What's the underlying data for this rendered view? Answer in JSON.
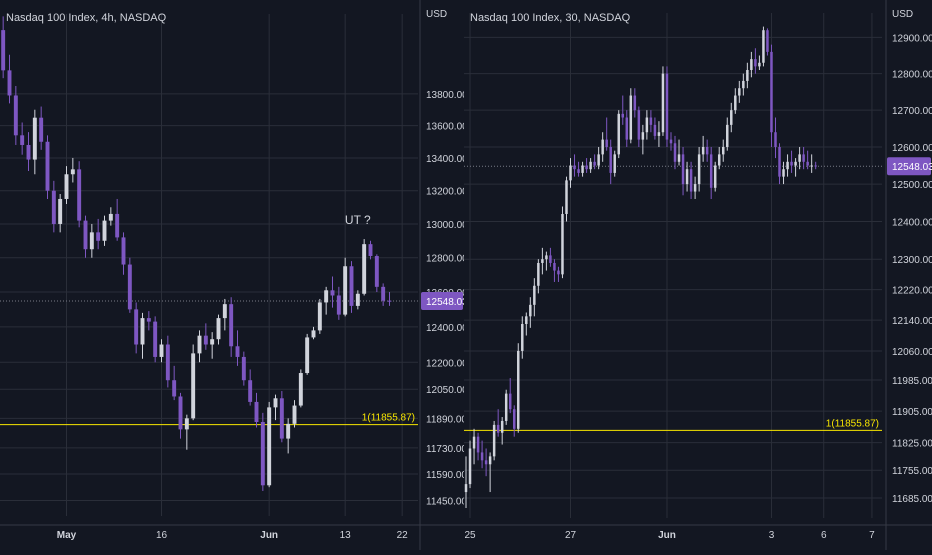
{
  "theme": {
    "background": "#131722",
    "grid": "#2a2e39",
    "text": "#d1d4dc",
    "bull": "#d1d4dc",
    "bear": "#7e57c2",
    "level_line": "#f7e600",
    "price_badge": "#7e57c2"
  },
  "chart_data": [
    {
      "type": "candlestick",
      "title": "Nasdaq 100 Index, 4h, NASDAQ",
      "currency_label": "USD",
      "y_scale": "log",
      "ylim": [
        11400,
        14250
      ],
      "y_ticks": [
        11450,
        11590,
        11730,
        11890,
        12050,
        12200,
        12400,
        12600,
        12800,
        13000,
        13200,
        13400,
        13600,
        13800
      ],
      "y_tick_labels": [
        "11450.00",
        "11590.00",
        "11730.00",
        "11890.00",
        "12050.00",
        "12200.00",
        "12400.00",
        "12600.00",
        "12800.00",
        "13000.00",
        "13200.00",
        "13400.00",
        "13600.00",
        "13800.00"
      ],
      "x_ticks": [
        {
          "index": 10,
          "label": "May",
          "bold": true
        },
        {
          "index": 25,
          "label": "16",
          "bold": false
        },
        {
          "index": 42,
          "label": "Jun",
          "bold": true
        },
        {
          "index": 54,
          "label": "13",
          "bold": false
        },
        {
          "index": 63,
          "label": "22",
          "bold": false
        }
      ],
      "x_count": 66,
      "candles": [
        [
          14210,
          14300,
          13900,
          13950
        ],
        [
          13950,
          14050,
          13740,
          13790
        ],
        [
          13790,
          13850,
          13480,
          13540
        ],
        [
          13540,
          13620,
          13420,
          13480
        ],
        [
          13480,
          13560,
          13320,
          13390
        ],
        [
          13390,
          13700,
          13300,
          13650
        ],
        [
          13650,
          13720,
          13450,
          13500
        ],
        [
          13500,
          13540,
          13150,
          13200
        ],
        [
          13200,
          13260,
          12950,
          13000
        ],
        [
          13000,
          13180,
          12950,
          13150
        ],
        [
          13150,
          13350,
          13120,
          13300
        ],
        [
          13300,
          13400,
          13250,
          13330
        ],
        [
          13330,
          13380,
          12980,
          13020
        ],
        [
          13020,
          13050,
          12800,
          12850
        ],
        [
          12850,
          13000,
          12800,
          12950
        ],
        [
          12950,
          13030,
          12850,
          12900
        ],
        [
          12900,
          13050,
          12870,
          13020
        ],
        [
          13020,
          13100,
          12990,
          13060
        ],
        [
          13060,
          13150,
          12900,
          12920
        ],
        [
          12920,
          12950,
          12700,
          12760
        ],
        [
          12760,
          12800,
          12480,
          12500
        ],
        [
          12500,
          12540,
          12250,
          12300
        ],
        [
          12300,
          12480,
          12220,
          12450
        ],
        [
          12450,
          12490,
          12380,
          12430
        ],
        [
          12430,
          12460,
          12200,
          12230
        ],
        [
          12230,
          12330,
          12200,
          12300
        ],
        [
          12300,
          12350,
          12060,
          12100
        ],
        [
          12100,
          12180,
          11990,
          12010
        ],
        [
          12010,
          12030,
          11780,
          11830
        ],
        [
          11830,
          11910,
          11720,
          11890
        ],
        [
          11890,
          12300,
          11880,
          12250
        ],
        [
          12250,
          12380,
          12200,
          12350
        ],
        [
          12350,
          12420,
          12270,
          12300
        ],
        [
          12300,
          12370,
          12220,
          12330
        ],
        [
          12330,
          12470,
          12300,
          12450
        ],
        [
          12450,
          12560,
          12380,
          12530
        ],
        [
          12530,
          12570,
          12230,
          12290
        ],
        [
          12290,
          12380,
          12180,
          12230
        ],
        [
          12230,
          12260,
          12070,
          12100
        ],
        [
          12100,
          12160,
          11960,
          11980
        ],
        [
          11980,
          12030,
          11840,
          11870
        ],
        [
          11870,
          11920,
          11500,
          11530
        ],
        [
          11530,
          11980,
          11520,
          11950
        ],
        [
          11950,
          12020,
          11880,
          12000
        ],
        [
          12000,
          12040,
          11760,
          11780
        ],
        [
          11780,
          11890,
          11700,
          11860
        ],
        [
          11860,
          11990,
          11840,
          11960
        ],
        [
          11960,
          12160,
          11950,
          12140
        ],
        [
          12140,
          12360,
          12130,
          12340
        ],
        [
          12340,
          12400,
          12330,
          12380
        ],
        [
          12380,
          12560,
          12360,
          12540
        ],
        [
          12540,
          12630,
          12470,
          12610
        ],
        [
          12610,
          12690,
          12510,
          12580
        ],
        [
          12580,
          12630,
          12440,
          12470
        ],
        [
          12470,
          12800,
          12460,
          12750
        ],
        [
          12750,
          12780,
          12480,
          12520
        ],
        [
          12520,
          12610,
          12500,
          12590
        ],
        [
          12590,
          12910,
          12580,
          12880
        ],
        [
          12880,
          12900,
          12790,
          12810
        ],
        [
          12810,
          12820,
          12600,
          12630
        ],
        [
          12630,
          12650,
          12520,
          12550
        ],
        [
          12550,
          12600,
          12520,
          12548
        ]
      ],
      "level": {
        "value": 11855.87,
        "label": "1(11855.87)"
      },
      "last_price": {
        "value": 12548.03,
        "label": "12548.03"
      },
      "annotation": {
        "text": "UT ?",
        "index": 56,
        "value": 13000
      }
    },
    {
      "type": "candlestick",
      "title": "Nasdaq 100 Index, 30, NASDAQ",
      "currency_label": "USD",
      "y_scale": "log",
      "ylim": [
        11650,
        12940
      ],
      "y_ticks": [
        11685,
        11755,
        11825,
        11905,
        11985,
        12060,
        12140,
        12220,
        12300,
        12400,
        12500,
        12600,
        12700,
        12800,
        12900
      ],
      "y_tick_labels": [
        "11685.00",
        "11755.00",
        "11825.00",
        "11905.00",
        "11985.00",
        "12060.00",
        "12140.00",
        "12220.00",
        "12300.00",
        "12400.00",
        "12500.00",
        "12600.00",
        "12700.00",
        "12800.00",
        "12900.00"
      ],
      "x_ticks": [
        {
          "index": 1,
          "label": "25",
          "bold": false
        },
        {
          "index": 26,
          "label": "27",
          "bold": false
        },
        {
          "index": 50,
          "label": "Jun",
          "bold": true
        },
        {
          "index": 76,
          "label": "3",
          "bold": false
        },
        {
          "index": 89,
          "label": "6",
          "bold": false
        },
        {
          "index": 101,
          "label": "7",
          "bold": false
        }
      ],
      "x_count": 104,
      "candles": [
        [
          11700,
          11790,
          11660,
          11720
        ],
        [
          11720,
          11830,
          11710,
          11810
        ],
        [
          11810,
          11860,
          11770,
          11840
        ],
        [
          11840,
          11850,
          11780,
          11800
        ],
        [
          11800,
          11830,
          11760,
          11780
        ],
        [
          11780,
          11810,
          11740,
          11770
        ],
        [
          11770,
          11800,
          11700,
          11790
        ],
        [
          11790,
          11880,
          11780,
          11870
        ],
        [
          11870,
          11910,
          11840,
          11850
        ],
        [
          11850,
          11890,
          11820,
          11880
        ],
        [
          11880,
          11960,
          11870,
          11950
        ],
        [
          11950,
          11990,
          11900,
          11910
        ],
        [
          11910,
          11920,
          11840,
          11860
        ],
        [
          11860,
          12080,
          11850,
          12060
        ],
        [
          12060,
          12150,
          12040,
          12130
        ],
        [
          12130,
          12160,
          12100,
          12150
        ],
        [
          12150,
          12200,
          12120,
          12180
        ],
        [
          12180,
          12250,
          12150,
          12230
        ],
        [
          12230,
          12300,
          12210,
          12290
        ],
        [
          12290,
          12330,
          12260,
          12300
        ],
        [
          12300,
          12320,
          12270,
          12310
        ],
        [
          12310,
          12330,
          12280,
          12290
        ],
        [
          12290,
          12300,
          12240,
          12270
        ],
        [
          12270,
          12280,
          12240,
          12260
        ],
        [
          12260,
          12440,
          12250,
          12420
        ],
        [
          12420,
          12520,
          12400,
          12510
        ],
        [
          12510,
          12570,
          12490,
          12550
        ],
        [
          12550,
          12580,
          12520,
          12540
        ],
        [
          12540,
          12560,
          12520,
          12530
        ],
        [
          12530,
          12560,
          12520,
          12550
        ],
        [
          12550,
          12570,
          12530,
          12540
        ],
        [
          12540,
          12570,
          12530,
          12560
        ],
        [
          12560,
          12580,
          12540,
          12550
        ],
        [
          12550,
          12600,
          12540,
          12580
        ],
        [
          12580,
          12640,
          12560,
          12620
        ],
        [
          12620,
          12680,
          12590,
          12600
        ],
        [
          12600,
          12620,
          12500,
          12530
        ],
        [
          12530,
          12590,
          12520,
          12580
        ],
        [
          12580,
          12700,
          12570,
          12690
        ],
        [
          12690,
          12740,
          12660,
          12680
        ],
        [
          12680,
          12700,
          12600,
          12620
        ],
        [
          12620,
          12760,
          12610,
          12740
        ],
        [
          12740,
          12760,
          12680,
          12700
        ],
        [
          12700,
          12710,
          12600,
          12620
        ],
        [
          12620,
          12660,
          12580,
          12640
        ],
        [
          12640,
          12700,
          12620,
          12680
        ],
        [
          12680,
          12700,
          12640,
          12660
        ],
        [
          12660,
          12680,
          12620,
          12630
        ],
        [
          12630,
          12670,
          12600,
          12640
        ],
        [
          12640,
          12820,
          12630,
          12800
        ],
        [
          12800,
          12820,
          12600,
          12620
        ],
        [
          12620,
          12640,
          12590,
          12610
        ],
        [
          12610,
          12630,
          12540,
          12560
        ],
        [
          12560,
          12620,
          12550,
          12580
        ],
        [
          12580,
          12600,
          12470,
          12500
        ],
        [
          12500,
          12560,
          12480,
          12540
        ],
        [
          12540,
          12560,
          12460,
          12480
        ],
        [
          12480,
          12520,
          12460,
          12500
        ],
        [
          12500,
          12600,
          12480,
          12580
        ],
        [
          12580,
          12630,
          12560,
          12600
        ],
        [
          12600,
          12620,
          12560,
          12580
        ],
        [
          12580,
          12600,
          12460,
          12490
        ],
        [
          12490,
          12560,
          12480,
          12550
        ],
        [
          12550,
          12600,
          12540,
          12580
        ],
        [
          12580,
          12620,
          12560,
          12600
        ],
        [
          12600,
          12680,
          12590,
          12660
        ],
        [
          12660,
          12720,
          12640,
          12700
        ],
        [
          12700,
          12760,
          12690,
          12740
        ],
        [
          12740,
          12780,
          12720,
          12760
        ],
        [
          12760,
          12800,
          12740,
          12780
        ],
        [
          12780,
          12830,
          12760,
          12810
        ],
        [
          12810,
          12860,
          12790,
          12840
        ],
        [
          12840,
          12870,
          12800,
          12820
        ],
        [
          12820,
          12850,
          12810,
          12830
        ],
        [
          12830,
          12930,
          12820,
          12920
        ],
        [
          12920,
          12925,
          12850,
          12860
        ],
        [
          12860,
          12880,
          12600,
          12640
        ],
        [
          12640,
          12680,
          12570,
          12600
        ],
        [
          12600,
          12610,
          12500,
          12520
        ],
        [
          12520,
          12560,
          12500,
          12540
        ],
        [
          12540,
          12580,
          12520,
          12560
        ],
        [
          12560,
          12590,
          12530,
          12550
        ],
        [
          12550,
          12570,
          12520,
          12560
        ],
        [
          12560,
          12600,
          12540,
          12580
        ],
        [
          12580,
          12600,
          12540,
          12560
        ],
        [
          12560,
          12590,
          12540,
          12550
        ],
        [
          12550,
          12580,
          12530,
          12550
        ],
        [
          12550,
          12560,
          12540,
          12548
        ]
      ],
      "level": {
        "value": 11855.87,
        "label": "1(11855.87)"
      },
      "last_price": {
        "value": 12548.03,
        "label": "12548.03"
      }
    }
  ]
}
